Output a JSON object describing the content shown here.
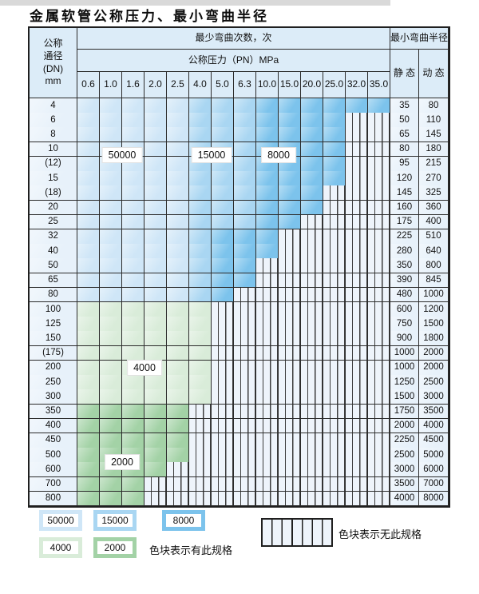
{
  "page": {
    "title": "金属软管公称压力、最小弯曲半径"
  },
  "table": {
    "corner_lines": [
      "公称",
      "通径",
      "(DN)",
      "mm"
    ],
    "bend_cycles_header": "最少弯曲次数，次",
    "pressure_header": "公称压力（PN）MPa",
    "radius_header": "最小弯曲半径",
    "static_label": "静 态",
    "dynamic_label": "动 态"
  },
  "chart_data": {
    "type": "table",
    "title": "金属软管公称压力、最小弯曲半径",
    "pressure_columns_MPa": [
      "0.6",
      "1.0",
      "1.6",
      "2.0",
      "2.5",
      "4.0",
      "5.0",
      "6.3",
      "10.0",
      "15.0",
      "20.0",
      "25.0",
      "32.0",
      "35.0"
    ],
    "cell_codes": {
      "L": "50000 bend cycles",
      "M": "15000 bend cycles",
      "D": "8000 bend cycles",
      "F": "4000 bend cycles",
      "T": "2000 bend cycles",
      "H": "no specification (hatched)"
    },
    "rows": [
      {
        "dn": "4",
        "cells": "LLLLLMMMDDDDDD",
        "static": "35",
        "dynamic": "80"
      },
      {
        "dn": "6",
        "cells": "LLLLLMMMDDDDHH",
        "static": "50",
        "dynamic": "110"
      },
      {
        "dn": "8",
        "cells": "LLLLLMMMDDDDHH",
        "static": "65",
        "dynamic": "145"
      },
      {
        "dn": "10",
        "cells": "LLLLLMMMDDDDHH",
        "static": "80",
        "dynamic": "180"
      },
      {
        "dn": "(12)",
        "cells": "LLLLLMMMDDDDHH",
        "static": "95",
        "dynamic": "215"
      },
      {
        "dn": "15",
        "cells": "LLLLLMMMDDDDHH",
        "static": "120",
        "dynamic": "270"
      },
      {
        "dn": "(18)",
        "cells": "LLLLLMMMDDDHHH",
        "static": "145",
        "dynamic": "325"
      },
      {
        "dn": "20",
        "cells": "LLLLLMMMDDDHHH",
        "static": "160",
        "dynamic": "360"
      },
      {
        "dn": "25",
        "cells": "LLLLLMMMDDHHHH",
        "static": "175",
        "dynamic": "400"
      },
      {
        "dn": "32",
        "cells": "LLLLLMDDDHHHHH",
        "static": "225",
        "dynamic": "510"
      },
      {
        "dn": "40",
        "cells": "LLLLLMDDDHHHHH",
        "static": "280",
        "dynamic": "640"
      },
      {
        "dn": "50",
        "cells": "LLLLLMDDHHHHHH",
        "static": "350",
        "dynamic": "800"
      },
      {
        "dn": "65",
        "cells": "LLLLLMDDHHHHHH",
        "static": "390",
        "dynamic": "845"
      },
      {
        "dn": "80",
        "cells": "LLLLLMDHHHHHHH",
        "static": "480",
        "dynamic": "1000"
      },
      {
        "dn": "100",
        "cells": "FFFFFFHHHHHHHH",
        "static": "600",
        "dynamic": "1200"
      },
      {
        "dn": "125",
        "cells": "FFFFFFHHHHHHHH",
        "static": "750",
        "dynamic": "1500"
      },
      {
        "dn": "150",
        "cells": "FFFFFFHHHHHHHH",
        "static": "900",
        "dynamic": "1800"
      },
      {
        "dn": "(175)",
        "cells": "FFFFFFHHHHHHHH",
        "static": "1000",
        "dynamic": "2000"
      },
      {
        "dn": "200",
        "cells": "FFFFFFHHHHHHHH",
        "static": "1000",
        "dynamic": "2000"
      },
      {
        "dn": "250",
        "cells": "FFFFFFHHHHHHHH",
        "static": "1250",
        "dynamic": "2500"
      },
      {
        "dn": "300",
        "cells": "FFFFFFHHHHHHHH",
        "static": "1500",
        "dynamic": "3000"
      },
      {
        "dn": "350",
        "cells": "TTTTTHHHHHHHHH",
        "static": "1750",
        "dynamic": "3500"
      },
      {
        "dn": "400",
        "cells": "TTTTTHHHHHHHHH",
        "static": "2000",
        "dynamic": "4000"
      },
      {
        "dn": "450",
        "cells": "TTTTTHHHHHHHHH",
        "static": "2250",
        "dynamic": "4500"
      },
      {
        "dn": "500",
        "cells": "TTTTTHHHHHHHHH",
        "static": "2500",
        "dynamic": "5000"
      },
      {
        "dn": "600",
        "cells": "TTTTHHHHHHHHHH",
        "static": "3000",
        "dynamic": "6000"
      },
      {
        "dn": "700",
        "cells": "TTTHHHHHHHHHHH",
        "static": "3500",
        "dynamic": "7000"
      },
      {
        "dn": "800",
        "cells": "TTTHHHHHHHHHHH",
        "static": "4000",
        "dynamic": "8000"
      }
    ],
    "annotations": [
      {
        "text": "50000",
        "col_start": 1,
        "col_span": 2,
        "row_pos": 3.9
      },
      {
        "text": "15000",
        "col_start": 5,
        "col_span": 2,
        "row_pos": 3.9
      },
      {
        "text": "8000",
        "col_start": 8,
        "col_span": 2,
        "row_pos": 3.9
      },
      {
        "text": "4000",
        "col_start": 2,
        "col_span": 2,
        "row_pos": 18.5
      },
      {
        "text": "2000",
        "col_start": 1,
        "col_span": 2,
        "row_pos": 25.0
      }
    ]
  },
  "colors": {
    "cycles_50000": "#cfe6f7",
    "cycles_15000": "#a9d6f2",
    "cycles_8000": "#7cc3ec",
    "cycles_4000": "#d9ecd9",
    "cycles_2000": "#a3d2a6",
    "no_spec_bg": "#eef4fb",
    "header_bg": "#dcecf8",
    "label_col_bg": "#e7f1fa",
    "grid_line": "#2b2b2b"
  },
  "legend": {
    "items": [
      {
        "label": "50000",
        "color_key": "cycles_50000"
      },
      {
        "label": "15000",
        "color_key": "cycles_15000"
      },
      {
        "label": "8000",
        "color_key": "cycles_8000"
      },
      {
        "label": "4000",
        "color_key": "cycles_4000"
      },
      {
        "label": "2000",
        "color_key": "cycles_2000"
      }
    ],
    "has_spec_text": "色块表示有此规格",
    "no_spec_text": "色块表示无此规格"
  }
}
